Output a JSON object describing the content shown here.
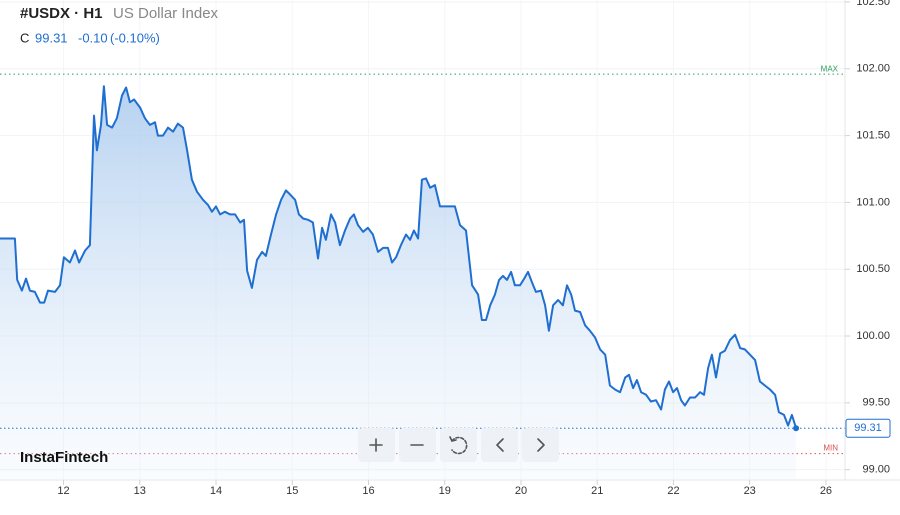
{
  "header": {
    "symbol": "#USDX · H1",
    "name": "US Dollar Index",
    "ohlc_label": "C",
    "close": "99.31",
    "change": "-0.10",
    "change_pct": "(-0.10%)",
    "watermark": "InstaFintech"
  },
  "chart_data": {
    "type": "line",
    "color": "#1f6fd1",
    "x": [
      0,
      4.7,
      5.4,
      6.9,
      8.2,
      9.4,
      11.0,
      12.6,
      13.9,
      15.1,
      17.3,
      18.9,
      20.1,
      22.0,
      23.6,
      24.9,
      26.8,
      28.3,
      29.6,
      30.5,
      31.8,
      32.7,
      33.7,
      35.3,
      36.8,
      38.4,
      39.7,
      40.9,
      42.2,
      44.1,
      45.6,
      47.2,
      48.8,
      49.7,
      51.3,
      52.9,
      54.5,
      56.0,
      57.6,
      58.9,
      60.4,
      62.0,
      63.9,
      65.5,
      66.7,
      68.0,
      69.3,
      70.8,
      72.4,
      74.0,
      75.6,
      76.8,
      77.8,
      79.3,
      80.9,
      82.5,
      83.7,
      85.3,
      86.9,
      88.5,
      90.0,
      91.3,
      92.9,
      94.1,
      95.4,
      97.0,
      98.5,
      100.1,
      101.4,
      102.6,
      104.2,
      105.5,
      107.0,
      108.6,
      110.2,
      111.4,
      112.7,
      114.3,
      115.8,
      117.4,
      119.0,
      120.6,
      122.1,
      123.4,
      124.7,
      126.2,
      127.8,
      129.1,
      130.3,
      131.6,
      132.8,
      134.1,
      135.4,
      136.9,
      138.5,
      140.1,
      141.7,
      143.2,
      144.8,
      146.7,
      148.6,
      150.5,
      151.7,
      153.0,
      154.3,
      155.8,
      157.1,
      158.3,
      159.6,
      160.9,
      162.1,
      163.7,
      165.0,
      166.2,
      167.5,
      168.7,
      170.3,
      171.6,
      172.8,
      174.1,
      175.7,
      177.2,
      178.5,
      179.8,
      181.0,
      182.6,
      184.2,
      185.7,
      187.3,
      188.9,
      190.5,
      192.0,
      193.6,
      195.2,
      196.8,
      198.0,
      199.3,
      200.5,
      201.8,
      203.4,
      204.9,
      206.5,
      208.1,
      209.3,
      210.6,
      211.9,
      213.1,
      214.4,
      215.6,
      217.2,
      218.8,
      220.4,
      221.6,
      222.9,
      224.1,
      225.4,
      226.7,
      228.2,
      229.8,
      231.4,
      233.0,
      234.5,
      236.1,
      237.7,
      239.2,
      240.8,
      242.4,
      244.0,
      245.2,
      246.8,
      248.1,
      249.3,
      250.6
    ],
    "values": [
      100.73,
      100.73,
      100.42,
      100.34,
      100.43,
      100.34,
      100.33,
      100.25,
      100.25,
      100.34,
      100.33,
      100.38,
      100.59,
      100.55,
      100.64,
      100.55,
      100.64,
      100.68,
      101.65,
      101.39,
      101.58,
      101.87,
      101.58,
      101.56,
      101.63,
      101.8,
      101.86,
      101.75,
      101.77,
      101.71,
      101.63,
      101.58,
      101.6,
      101.5,
      101.5,
      101.56,
      101.53,
      101.59,
      101.56,
      101.39,
      101.17,
      101.08,
      101.02,
      100.98,
      100.93,
      100.97,
      100.91,
      100.93,
      100.91,
      100.91,
      100.85,
      100.87,
      100.49,
      100.36,
      100.57,
      100.63,
      100.6,
      100.76,
      100.91,
      101.02,
      101.09,
      101.06,
      101.02,
      100.91,
      100.88,
      100.87,
      100.85,
      100.58,
      100.81,
      100.72,
      100.91,
      100.85,
      100.68,
      100.79,
      100.88,
      100.91,
      100.83,
      100.78,
      100.81,
      100.76,
      100.63,
      100.66,
      100.66,
      100.55,
      100.59,
      100.68,
      100.76,
      100.72,
      100.79,
      100.73,
      101.17,
      101.18,
      101.11,
      101.13,
      100.97,
      100.97,
      100.97,
      100.97,
      100.83,
      100.79,
      100.38,
      100.31,
      100.12,
      100.12,
      100.23,
      100.31,
      100.42,
      100.45,
      100.42,
      100.48,
      100.38,
      100.38,
      100.43,
      100.48,
      100.4,
      100.33,
      100.34,
      100.23,
      100.04,
      100.23,
      100.27,
      100.23,
      100.38,
      100.31,
      100.19,
      100.18,
      100.08,
      100.04,
      99.99,
      99.9,
      99.86,
      99.63,
      99.6,
      99.58,
      99.69,
      99.71,
      99.61,
      99.67,
      99.58,
      99.56,
      99.51,
      99.52,
      99.45,
      99.6,
      99.66,
      99.58,
      99.61,
      99.52,
      99.48,
      99.54,
      99.54,
      99.58,
      99.56,
      99.76,
      99.86,
      99.69,
      99.87,
      99.89,
      99.97,
      100.01,
      99.91,
      99.9,
      99.86,
      99.82,
      99.66,
      99.63,
      99.6,
      99.56,
      99.43,
      99.41,
      99.33,
      99.41,
      99.31
    ],
    "xlim": [
      0,
      266
    ],
    "ylim": [
      98.93,
      102.515
    ],
    "xticks": [
      {
        "value": 20,
        "label": "12"
      },
      {
        "value": 44,
        "label": "13"
      },
      {
        "value": 68,
        "label": "14"
      },
      {
        "value": 92,
        "label": "15"
      },
      {
        "value": 116,
        "label": "16"
      },
      {
        "value": 140,
        "label": "19"
      },
      {
        "value": 164,
        "label": "20"
      },
      {
        "value": 188,
        "label": "21"
      },
      {
        "value": 212,
        "label": "22"
      },
      {
        "value": 236,
        "label": "23"
      },
      {
        "value": 260,
        "label": "26"
      }
    ],
    "yticks": [
      {
        "value": 99,
        "label": "99.00"
      },
      {
        "value": 99.5,
        "label": "99.50"
      },
      {
        "value": 100,
        "label": "100.00"
      },
      {
        "value": 100.5,
        "label": "100.50"
      },
      {
        "value": 101,
        "label": "101.00"
      },
      {
        "value": 101.5,
        "label": "101.50"
      },
      {
        "value": 102,
        "label": "102.00"
      },
      {
        "value": 102.5,
        "label": "102.50"
      }
    ],
    "grid": true,
    "max_line": {
      "value": 101.96,
      "label": "MAX",
      "color": "#2e9e5b"
    },
    "min_line": {
      "value": 99.12,
      "label": "MIN",
      "color": "#d9534f"
    },
    "current": {
      "value": 99.31,
      "label": "99.31"
    }
  }
}
